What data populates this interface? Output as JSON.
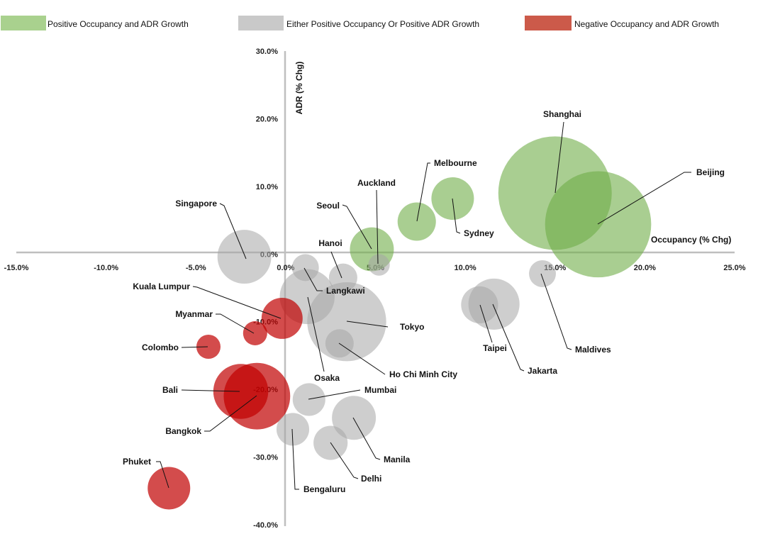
{
  "chart_data": {
    "type": "bubble",
    "xlabel": "Occupancy (% Chg)",
    "ylabel": "ADR (% Chg)",
    "xlim": [
      -15,
      25
    ],
    "ylim": [
      -40,
      30
    ],
    "xticks": [
      "-15.0%",
      "-10.0%",
      "-5.0%",
      "0.0%",
      "5.0%",
      "10.0%",
      "15.0%",
      "20.0%",
      "25.0%"
    ],
    "yticks": [
      "30.0%",
      "20.0%",
      "10.0%",
      "0.0%",
      "-10.0%",
      "-20.0%",
      "-30.0%",
      "-40.0%"
    ],
    "grid": false,
    "legend_position": "top",
    "legend": [
      {
        "key": "pos",
        "label": "Positive Occupancy and ADR Growth",
        "color": "#a9d18e"
      },
      {
        "key": "mixed",
        "label": "Either Positive Occupancy Or Positive ADR Growth",
        "color": "#c9c9c9"
      },
      {
        "key": "neg",
        "label": "Negative Occupancy and ADR Growth",
        "color": "#cc5a4a"
      }
    ],
    "colors": {
      "pos": "#70ad47",
      "mixed": "#a5a5a5",
      "neg": "#c00000"
    },
    "points": [
      {
        "name": "Shanghai",
        "x": 15.0,
        "y": 9.0,
        "size": 64,
        "group": "pos"
      },
      {
        "name": "Beijing",
        "x": 17.4,
        "y": 4.4,
        "size": 56,
        "group": "pos"
      },
      {
        "name": "Sydney",
        "x": 9.3,
        "y": 8.2,
        "size": 9,
        "group": "pos"
      },
      {
        "name": "Melbourne",
        "x": 7.3,
        "y": 4.8,
        "size": 7.3,
        "group": "pos"
      },
      {
        "name": "Seoul",
        "x": 4.8,
        "y": 0.7,
        "size": 9.6,
        "group": "pos"
      },
      {
        "name": "Auckland",
        "x": 5.2,
        "y": -1.6,
        "size": 2.3,
        "group": "mixed"
      },
      {
        "name": "Singapore",
        "x": -2.3,
        "y": -0.4,
        "size": 14.4,
        "group": "mixed"
      },
      {
        "name": "Hanoi",
        "x": 3.2,
        "y": -3.5,
        "size": 4,
        "group": "mixed"
      },
      {
        "name": "Langkawi",
        "x": 1.1,
        "y": -2.0,
        "size": 3.6,
        "group": "mixed"
      },
      {
        "name": "Osaka",
        "x": 1.2,
        "y": -6.3,
        "size": 15,
        "group": "mixed"
      },
      {
        "name": "Tokyo",
        "x": 3.4,
        "y": -10.0,
        "size": 31,
        "group": "mixed"
      },
      {
        "name": "Ho Chi Minh City",
        "x": 3.0,
        "y": -13.2,
        "size": 4,
        "group": "mixed"
      },
      {
        "name": "Kuala Lumpur",
        "x": -0.2,
        "y": -9.5,
        "size": 8.4,
        "group": "neg"
      },
      {
        "name": "Myanmar",
        "x": -1.7,
        "y": -11.7,
        "size": 2.9,
        "group": "neg"
      },
      {
        "name": "Colombo",
        "x": -4.3,
        "y": -13.7,
        "size": 2.9,
        "group": "neg"
      },
      {
        "name": "Bali",
        "x": -2.5,
        "y": -20.3,
        "size": 15,
        "group": "neg"
      },
      {
        "name": "Bangkok",
        "x": -1.6,
        "y": -21.0,
        "size": 22,
        "group": "neg"
      },
      {
        "name": "Phuket",
        "x": -6.5,
        "y": -34.6,
        "size": 9,
        "group": "neg"
      },
      {
        "name": "Mumbai",
        "x": 1.3,
        "y": -21.5,
        "size": 5.3,
        "group": "mixed"
      },
      {
        "name": "Bengaluru",
        "x": 0.4,
        "y": -25.9,
        "size": 5.3,
        "group": "mixed"
      },
      {
        "name": "Delhi",
        "x": 2.5,
        "y": -27.9,
        "size": 5.8,
        "group": "mixed"
      },
      {
        "name": "Manila",
        "x": 3.8,
        "y": -24.2,
        "size": 9.6,
        "group": "mixed"
      },
      {
        "name": "Taipei",
        "x": 10.8,
        "y": -7.5,
        "size": 6.8,
        "group": "mixed"
      },
      {
        "name": "Jakarta",
        "x": 11.6,
        "y": -7.4,
        "size": 13,
        "group": "mixed"
      },
      {
        "name": "Maldives",
        "x": 14.3,
        "y": -2.9,
        "size": 3.6,
        "group": "mixed"
      }
    ]
  }
}
